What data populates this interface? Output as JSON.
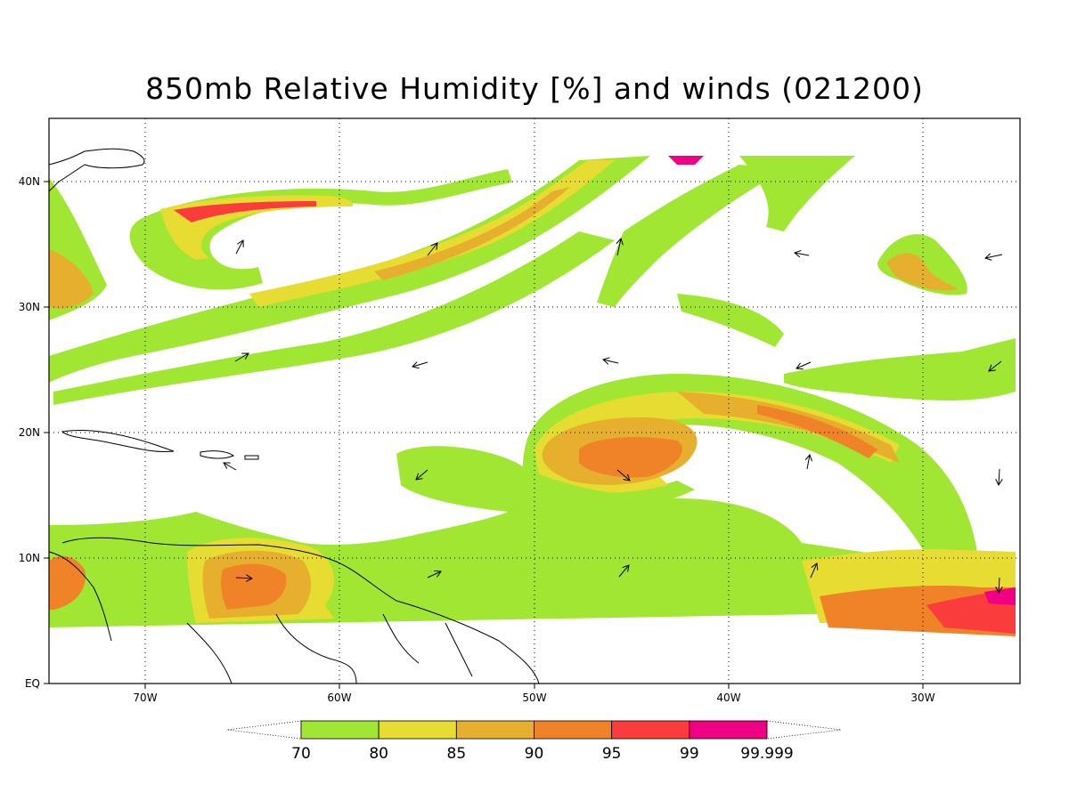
{
  "title": "850mb Relative Humidity [%] and winds (021200)",
  "lat_labels": [
    "40N",
    "30N",
    "20N",
    "10N",
    "EQ"
  ],
  "lon_labels": [
    "70W",
    "60W",
    "50W",
    "40W",
    "30W"
  ],
  "colorbar": {
    "levels": [
      "70",
      "80",
      "85",
      "90",
      "95",
      "99",
      "99.999"
    ],
    "colors": [
      "#a0e632",
      "#e6dc32",
      "#e6af2d",
      "#f08228",
      "#fa3c3c",
      "#f00082"
    ]
  },
  "map_extent": {
    "lon": [
      -75,
      -25
    ],
    "lat": [
      0,
      45
    ]
  }
}
